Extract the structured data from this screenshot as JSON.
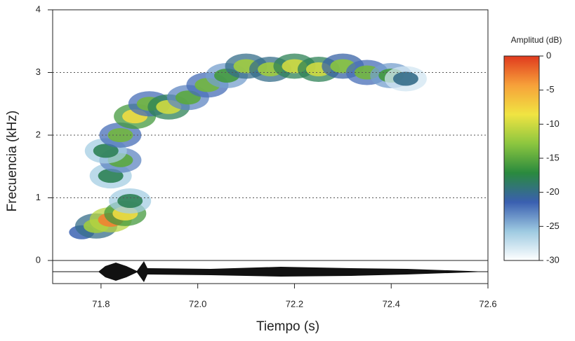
{
  "chart_data": {
    "type": "spectrogram",
    "xlabel": "Tiempo (s)",
    "ylabel": "Frecuencia (kHz)",
    "xlim": [
      71.7,
      72.6
    ],
    "ylim": [
      0,
      4
    ],
    "xticks": [
      71.8,
      {
        "value": 72,
        "label": "72.0"
      },
      72.2,
      72.4,
      72.6
    ],
    "yticks": [
      0,
      1,
      2,
      3,
      4
    ],
    "grid": true,
    "x": [
      71.76,
      71.79,
      71.82,
      71.85,
      71.86,
      71.82,
      71.84,
      71.81,
      71.84,
      71.87,
      71.9,
      71.94,
      71.98,
      72.02,
      72.06,
      72.1,
      72.15,
      72.2,
      72.25,
      72.3,
      72.35,
      72.4,
      72.43
    ],
    "values": [
      0.45,
      0.55,
      0.65,
      0.75,
      0.95,
      1.35,
      1.6,
      1.75,
      2.0,
      2.3,
      2.5,
      2.45,
      2.6,
      2.8,
      2.95,
      3.1,
      3.05,
      3.1,
      3.05,
      3.1,
      3.0,
      2.95,
      2.9
    ],
    "amplitude": [
      -22,
      -12,
      -3,
      -8,
      -18,
      -18,
      -15,
      -18,
      -14,
      -8,
      -14,
      -10,
      -15,
      -14,
      -16,
      -12,
      -12,
      -10,
      -10,
      -13,
      -14,
      -16,
      -20
    ],
    "colorbar_label": "Amplitud (dB)",
    "zlim": [
      -30,
      0
    ],
    "zticks": [
      0,
      -5,
      -10,
      -15,
      -20,
      -25,
      -30
    ],
    "colorscale": [
      "#ffffff",
      "#9ecae1",
      "#3a5fb0",
      "#2a8a3e",
      "#8cc63f",
      "#f0e442",
      "#f7a13a",
      "#e03a1e"
    ]
  }
}
